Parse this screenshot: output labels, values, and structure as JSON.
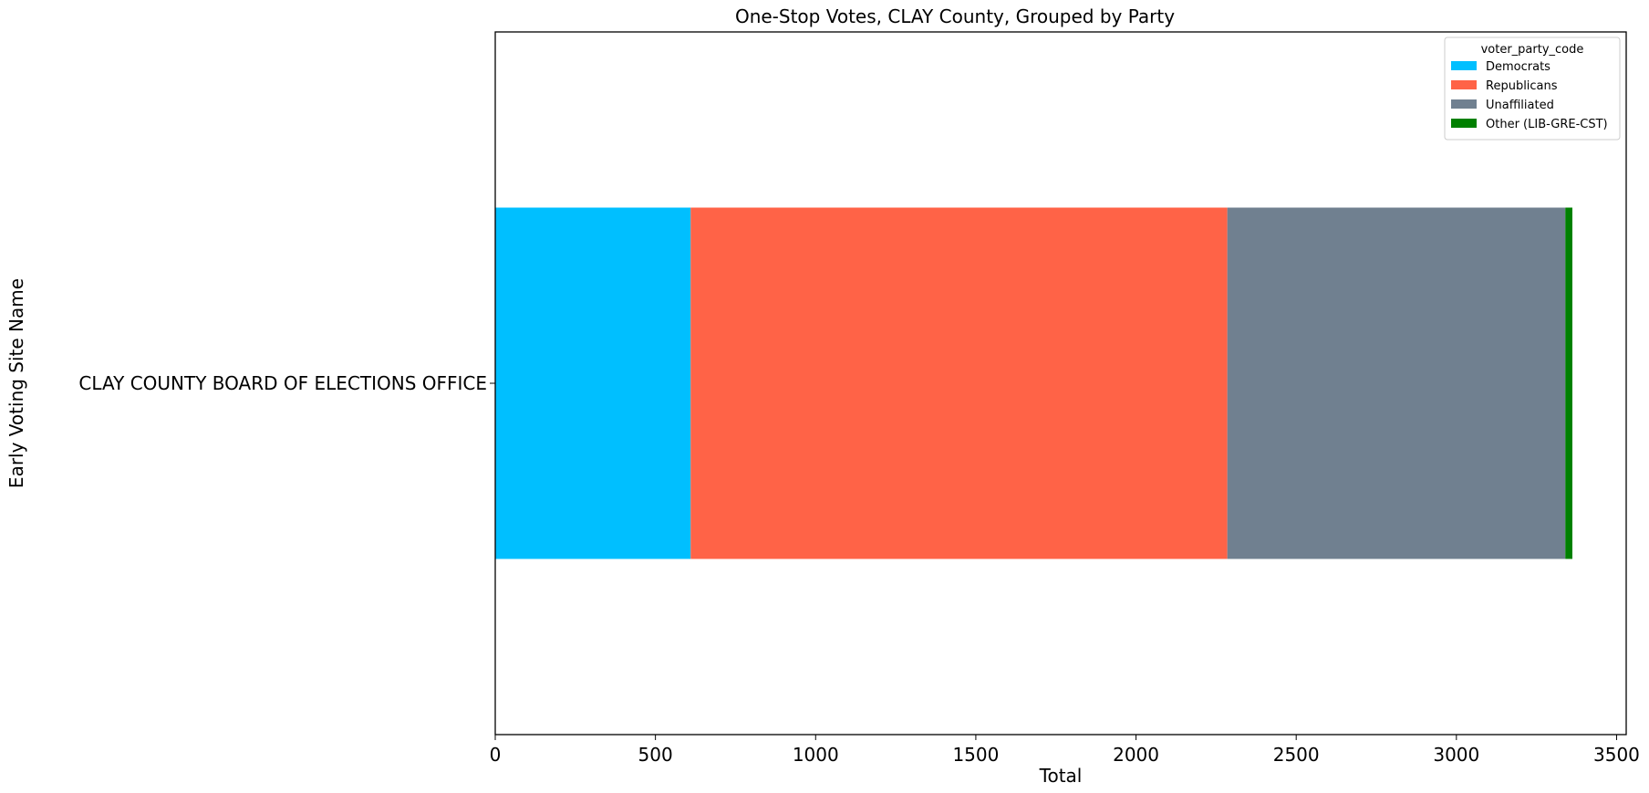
{
  "chart_data": {
    "type": "bar",
    "orientation": "horizontal",
    "stacked": true,
    "title": "One-Stop Votes, CLAY County, Grouped by Party",
    "xlabel": "Total",
    "ylabel": "Early Voting Site Name",
    "categories": [
      "CLAY COUNTY BOARD OF ELECTIONS OFFICE"
    ],
    "xlim": [
      0,
      3530
    ],
    "xticks": [
      0,
      500,
      1000,
      1500,
      2000,
      2500,
      3000,
      3500
    ],
    "grid": false,
    "legend": {
      "title": "voter_party_code",
      "placement": "top-right"
    },
    "series": [
      {
        "name": "Democrats",
        "values": [
          610
        ],
        "color": "#00BFFF"
      },
      {
        "name": "Republicans",
        "values": [
          1675
        ],
        "color": "#FF6347"
      },
      {
        "name": "Unaffiliated",
        "values": [
          1055
        ],
        "color": "#708090"
      },
      {
        "name": "Other (LIB-GRE-CST)",
        "values": [
          22
        ],
        "color": "#008000"
      }
    ]
  }
}
